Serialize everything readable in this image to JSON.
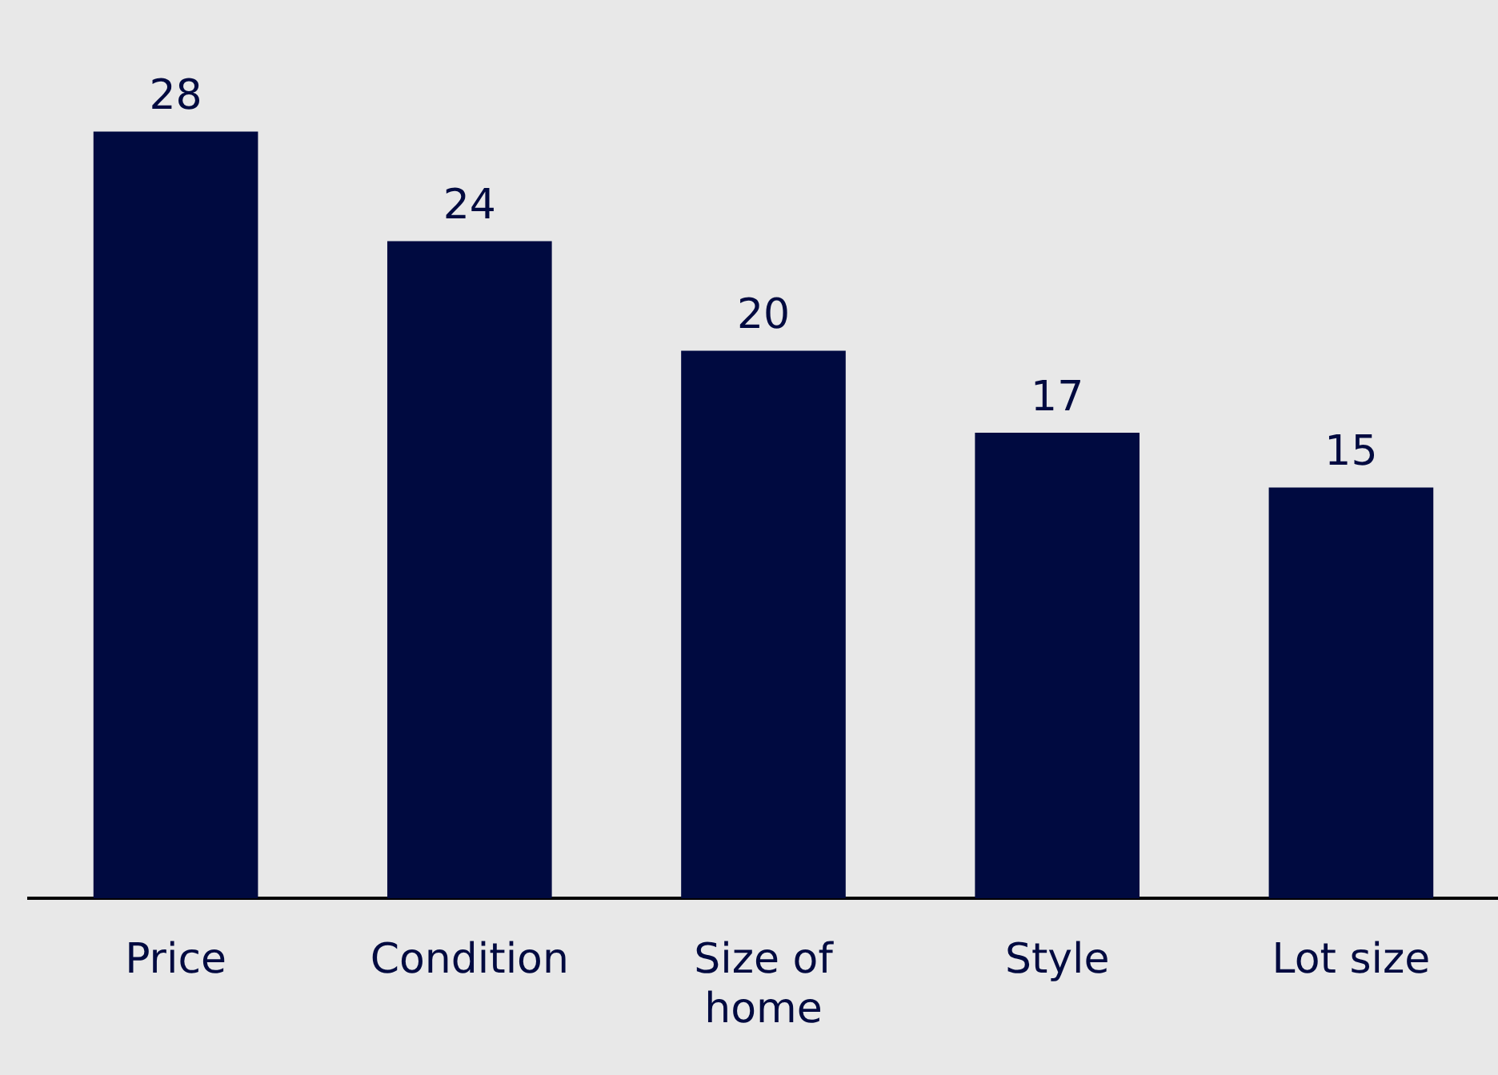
{
  "chart_data": {
    "type": "bar",
    "categories": [
      "Price",
      "Condition",
      "Size of home",
      "Style",
      "Lot size"
    ],
    "values": [
      28,
      24,
      20,
      17,
      15
    ],
    "color": "#000a40",
    "data_labels": true,
    "grid": false,
    "legend": false
  }
}
